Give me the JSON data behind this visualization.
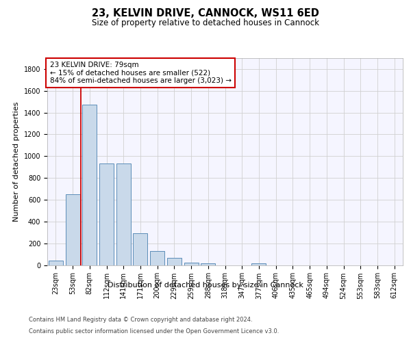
{
  "title1": "23, KELVIN DRIVE, CANNOCK, WS11 6ED",
  "title2": "Size of property relative to detached houses in Cannock",
  "xlabel": "Distribution of detached houses by size in Cannock",
  "ylabel": "Number of detached properties",
  "bar_labels": [
    "23sqm",
    "53sqm",
    "82sqm",
    "112sqm",
    "141sqm",
    "171sqm",
    "200sqm",
    "229sqm",
    "259sqm",
    "288sqm",
    "318sqm",
    "347sqm",
    "377sqm",
    "406sqm",
    "435sqm",
    "465sqm",
    "494sqm",
    "524sqm",
    "553sqm",
    "583sqm",
    "612sqm"
  ],
  "bar_values": [
    40,
    650,
    1475,
    935,
    935,
    290,
    130,
    65,
    25,
    15,
    0,
    0,
    15,
    0,
    0,
    0,
    0,
    0,
    0,
    0,
    0
  ],
  "bar_color": "#c9d9ea",
  "bar_edge_color": "#5b8db8",
  "grid_color": "#d0d0d0",
  "background_color": "#ffffff",
  "plot_bg_color": "#f5f5ff",
  "vline_index": 2,
  "vline_color": "#cc0000",
  "annotation_text": "23 KELVIN DRIVE: 79sqm\n← 15% of detached houses are smaller (522)\n84% of semi-detached houses are larger (3,023) →",
  "annotation_box_color": "#ffffff",
  "annotation_box_edge": "#cc0000",
  "footer1": "Contains HM Land Registry data © Crown copyright and database right 2024.",
  "footer2": "Contains public sector information licensed under the Open Government Licence v3.0.",
  "ylim": [
    0,
    1900
  ],
  "yticks": [
    0,
    200,
    400,
    600,
    800,
    1000,
    1200,
    1400,
    1600,
    1800
  ],
  "title1_fontsize": 10.5,
  "title2_fontsize": 8.5,
  "ylabel_fontsize": 8,
  "xlabel_fontsize": 8,
  "tick_fontsize": 7,
  "annotation_fontsize": 7.5,
  "footer_fontsize": 6
}
